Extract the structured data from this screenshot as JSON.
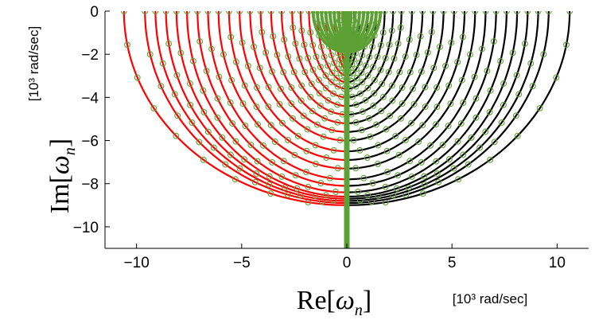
{
  "chart_data": {
    "type": "scatter",
    "x": {
      "label_main": "Re",
      "label_var": "ω",
      "label_sub": "n",
      "units": "[10³ rad/sec]",
      "lim": [
        -11.5,
        11.5
      ],
      "ticks": [
        -10,
        -5,
        0,
        5,
        10
      ],
      "tick_labels": [
        "−10",
        "−5",
        "0",
        "5",
        "10"
      ]
    },
    "y": {
      "label_main": "Im",
      "label_var": "ω",
      "label_sub": "n",
      "units": "[10³ rad/sec]",
      "lim": [
        -11,
        0
      ],
      "ticks": [
        0,
        -2,
        -4,
        -6,
        -8,
        -10
      ],
      "tick_labels": [
        "0",
        "−2",
        "−4",
        "−6",
        "−8",
        "−10"
      ]
    },
    "grid": false,
    "colors": {
      "left_branch": "#ff0000",
      "right_branch": "#000000",
      "markers": "#5da135",
      "imag_axis": "#5da135"
    },
    "series": [
      {
        "description_role": "red loci Re<0 and black loci Re>0 (mirror-symmetric)",
        "arcs": [
          [
            10.6,
            9.0
          ],
          [
            9.6,
            8.9
          ],
          [
            9.1,
            8.8
          ],
          [
            8.6,
            8.7
          ],
          [
            8.1,
            8.6
          ],
          [
            7.6,
            8.4
          ],
          [
            7.1,
            8.1
          ],
          [
            6.6,
            7.8
          ],
          [
            6.1,
            7.3
          ],
          [
            5.6,
            6.9
          ],
          [
            5.1,
            6.5
          ],
          [
            4.6,
            6.0
          ],
          [
            4.1,
            5.6
          ],
          [
            3.6,
            5.2
          ],
          [
            3.1,
            4.8
          ],
          [
            2.6,
            4.4
          ],
          [
            2.2,
            4.0
          ],
          [
            1.8,
            3.6
          ],
          [
            1.4,
            3.3
          ],
          [
            1.0,
            3.0
          ],
          [
            0.6,
            2.7
          ],
          [
            0.35,
            2.5
          ]
        ]
      }
    ],
    "inner_loops": [
      [
        0.2,
        1.2
      ],
      [
        0.4,
        1.3
      ],
      [
        0.6,
        1.4
      ],
      [
        0.8,
        1.5
      ],
      [
        1.0,
        1.6
      ],
      [
        1.2,
        1.7
      ],
      [
        1.4,
        1.8
      ],
      [
        1.6,
        1.9
      ]
    ],
    "imag_axis_segment": [
      0,
      -11
    ]
  }
}
